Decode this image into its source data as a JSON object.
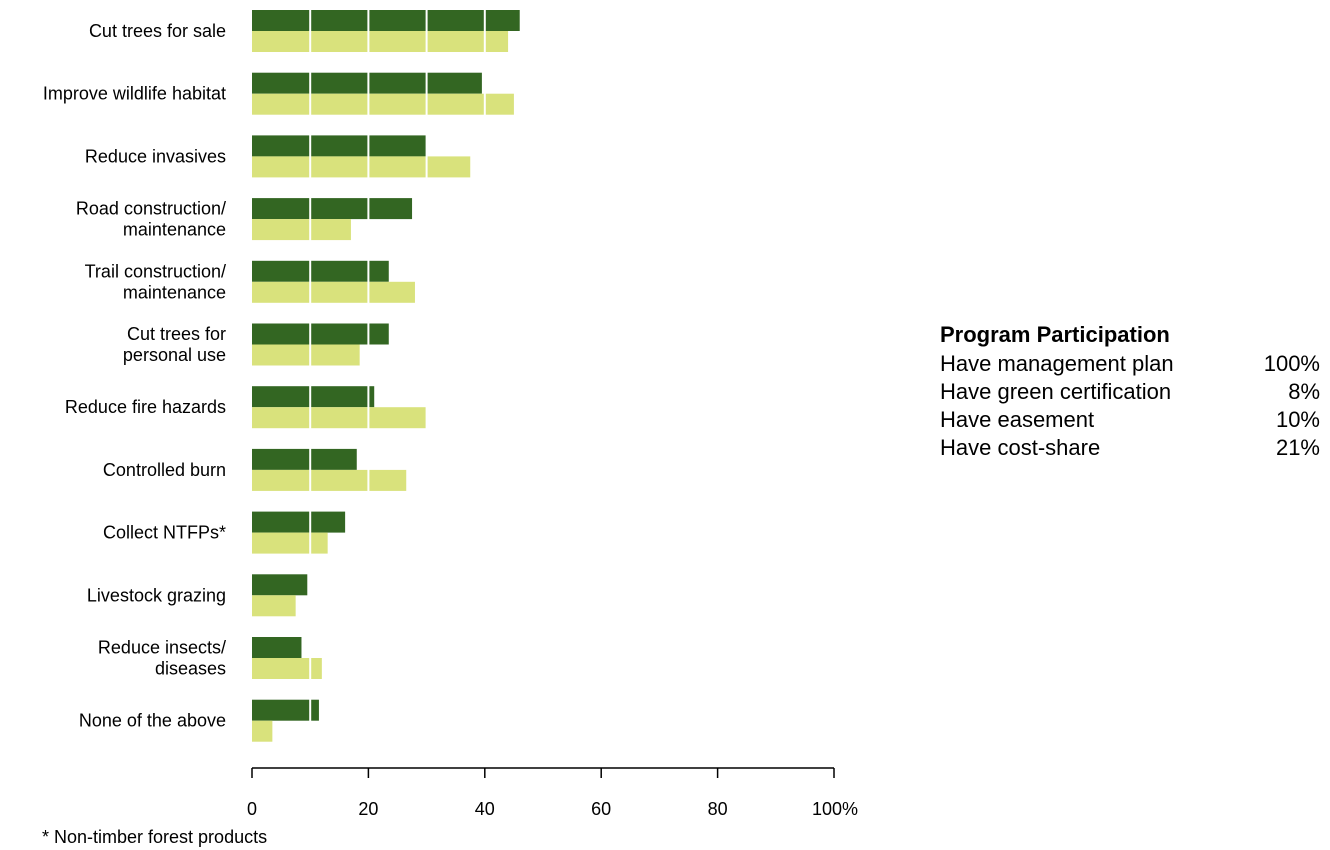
{
  "chart_data": {
    "type": "bar",
    "orientation": "horizontal",
    "categories": [
      "Cut trees for sale",
      "Improve wildlife habitat",
      "Reduce invasives",
      "Road construction/\nmaintenance",
      "Trail construction/\nmaintenance",
      "Cut trees for\npersonal use",
      "Reduce fire hazards",
      "Controlled burn",
      "Collect NTFPs*",
      "Livestock grazing",
      "Reduce insects/\ndiseases",
      "None of the above"
    ],
    "series": [
      {
        "color": "#336622",
        "values": [
          46,
          39.5,
          30,
          27.5,
          23.5,
          23.5,
          21,
          18,
          16,
          9.5,
          8.5,
          11.5
        ]
      },
      {
        "color": "#d9e27c",
        "values": [
          44,
          45,
          37.5,
          17,
          28,
          18.5,
          30,
          26.5,
          13,
          7.5,
          12,
          3.5
        ]
      }
    ],
    "xlim": [
      0,
      100
    ],
    "xticks": [
      0,
      20,
      40,
      60,
      80,
      100
    ],
    "xtick_labels": [
      "0",
      "20",
      "40",
      "60",
      "80",
      "100%"
    ],
    "gridlines": [
      10,
      20,
      30,
      40
    ],
    "footnote": "* Non-timber forest products"
  },
  "program_participation": {
    "title": "Program Participation",
    "rows": [
      {
        "label": "Have management plan",
        "value": "100%"
      },
      {
        "label": "Have green certification",
        "value": "8%"
      },
      {
        "label": "Have easement",
        "value": "10%"
      },
      {
        "label": "Have cost-share",
        "value": "21%"
      }
    ]
  }
}
